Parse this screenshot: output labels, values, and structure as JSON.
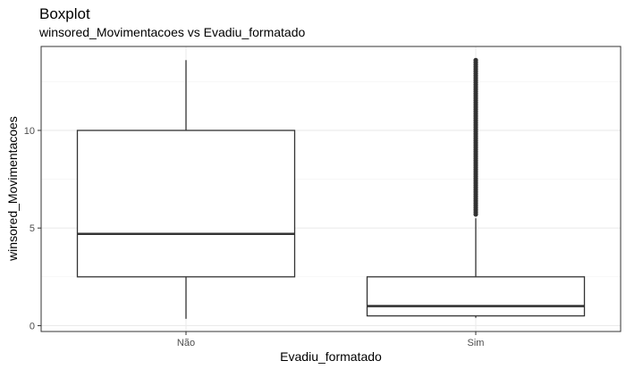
{
  "chart_data": {
    "type": "boxplot",
    "title": "Boxplot",
    "subtitle": "winsored_Movimentacoes vs Evadiu_formatado",
    "xlabel": "Evadiu_formatado",
    "ylabel": "winsored_Movimentacoes",
    "categories": [
      "Não",
      "Sim"
    ],
    "yticks": [
      0,
      5,
      10
    ],
    "ylim": [
      -0.3,
      14.3
    ],
    "grid": true,
    "boxes": [
      {
        "category": "Não",
        "whisker_low": 0.35,
        "q1": 2.5,
        "median": 4.7,
        "q3": 10.0,
        "whisker_high": 13.6,
        "outliers_from": null,
        "outliers_to": null
      },
      {
        "category": "Sim",
        "whisker_low": 0.4,
        "q1": 0.5,
        "median": 1.0,
        "q3": 2.5,
        "whisker_high": 5.5,
        "outliers_from": 5.7,
        "outliers_to": 13.6
      }
    ]
  }
}
